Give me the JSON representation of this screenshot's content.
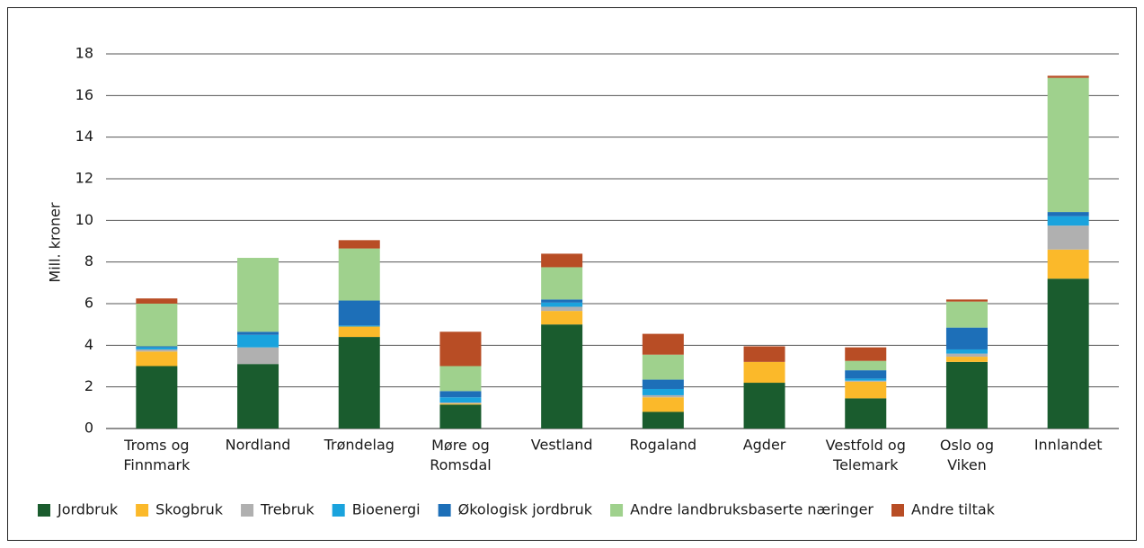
{
  "chart_data": {
    "type": "stacked_bar",
    "y_label": "Mill. kroner",
    "categories": [
      "Troms og Finnmark",
      "Nordland",
      "Trøndelag",
      "Møre og Romsdal",
      "Vestland",
      "Rogaland",
      "Agder",
      "Vestfold og Telemark",
      "Oslo og Viken",
      "Innlandet"
    ],
    "series": [
      {
        "name": "Jordbruk",
        "color": "#1a5c2e",
        "values": [
          3.0,
          3.1,
          4.4,
          1.15,
          5.0,
          0.8,
          2.2,
          1.45,
          3.2,
          7.2
        ]
      },
      {
        "name": "Skogbruk",
        "color": "#fbb92a",
        "values": [
          0.7,
          0,
          0.5,
          0.05,
          0.65,
          0.7,
          1.0,
          0.8,
          0.25,
          1.4
        ]
      },
      {
        "name": "Trebruk",
        "color": "#b0b0b0",
        "values": [
          0.1,
          0.8,
          0,
          0.05,
          0.2,
          0.1,
          0,
          0.05,
          0.15,
          1.15
        ]
      },
      {
        "name": "Bioenergi",
        "color": "#1aa3dd",
        "values": [
          0.1,
          0.6,
          0.05,
          0.25,
          0.2,
          0.3,
          0,
          0.1,
          0.2,
          0.45
        ]
      },
      {
        "name": "Økologisk jordbruk",
        "color": "#1d6fb8",
        "values": [
          0.05,
          0.15,
          1.2,
          0.3,
          0.15,
          0.45,
          0,
          0.4,
          1.05,
          0.2
        ]
      },
      {
        "name": "Andre landbruksbaserte næringer",
        "color": "#9fd18d",
        "values": [
          2.05,
          3.55,
          2.5,
          1.2,
          1.55,
          1.2,
          0,
          0.45,
          1.25,
          6.45
        ]
      },
      {
        "name": "Andre tiltak",
        "color": "#b84d25",
        "values": [
          0.25,
          0,
          0.4,
          1.65,
          0.65,
          1.0,
          0.75,
          0.65,
          0.1,
          0.1
        ]
      }
    ],
    "ylim": [
      0,
      18
    ],
    "yticks": [
      0,
      2,
      4,
      6,
      8,
      10,
      12,
      14,
      16,
      18
    ],
    "grid": true,
    "legend": "bottom"
  }
}
